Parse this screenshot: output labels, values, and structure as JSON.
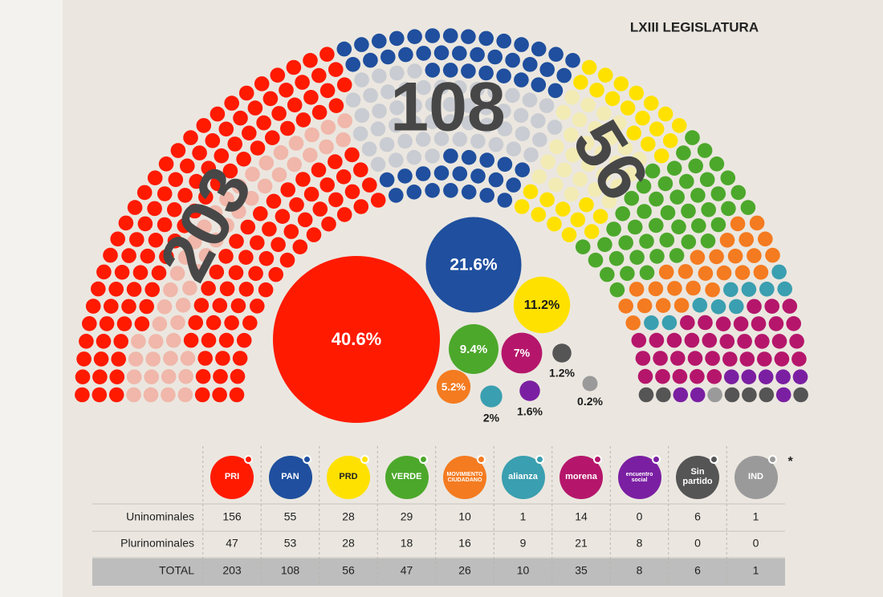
{
  "chart_data": {
    "type": "parliament",
    "title": "LXIII LEGISLATURA",
    "table_rows": [
      "Uninominales",
      "Plurinominales",
      "TOTAL"
    ],
    "footnote_mark": "*",
    "parties": [
      {
        "name": "PRI",
        "color": "#ff1a00",
        "light_color": "#f0b7aa",
        "uninominales": 156,
        "plurinominales": 47,
        "total": 203,
        "share": 40.6,
        "share_label": "40.6%"
      },
      {
        "name": "PAN",
        "color": "#1f4f9e",
        "light_color": "#c9ccd2",
        "uninominales": 55,
        "plurinominales": 53,
        "total": 108,
        "share": 21.6,
        "share_label": "21.6%"
      },
      {
        "name": "PRD",
        "color": "#ffe100",
        "light_color": "#f3ebb4",
        "uninominales": 28,
        "plurinominales": 28,
        "total": 56,
        "share": 11.2,
        "share_label": "11.2%"
      },
      {
        "name": "VERDE",
        "color": "#4ca82b",
        "light_color": "#4ca82b",
        "uninominales": 29,
        "plurinominales": 18,
        "total": 47,
        "share": 9.4,
        "share_label": "9.4%"
      },
      {
        "name": "MOVIMIENTO CIUDADANO",
        "color": "#f47b20",
        "light_color": "#f47b20",
        "uninominales": 10,
        "plurinominales": 16,
        "total": 26,
        "share": 5.2,
        "share_label": "5.2%"
      },
      {
        "name": "alianza",
        "color": "#3a9fb0",
        "light_color": "#3a9fb0",
        "uninominales": 1,
        "plurinominales": 9,
        "total": 10,
        "share": 2,
        "share_label": "2%"
      },
      {
        "name": "morena",
        "color": "#b5166b",
        "light_color": "#b5166b",
        "uninominales": 14,
        "plurinominales": 21,
        "total": 35,
        "share": 7,
        "share_label": "7%"
      },
      {
        "name": "encuentro social",
        "color": "#7b1fa2",
        "light_color": "#7b1fa2",
        "uninominales": 0,
        "plurinominales": 8,
        "total": 8,
        "share": 1.6,
        "share_label": "1.6%"
      },
      {
        "name": "Sin partido",
        "color": "#555555",
        "light_color": "#555555",
        "uninominales": 6,
        "plurinominales": 0,
        "total": 6,
        "share": 1.2,
        "share_label": "1.2%"
      },
      {
        "name": "IND",
        "color": "#9a9a9a",
        "light_color": "#9a9a9a",
        "uninominales": 1,
        "plurinominales": 0,
        "total": 1,
        "share": 0.2,
        "share_label": "0.2%"
      }
    ]
  }
}
